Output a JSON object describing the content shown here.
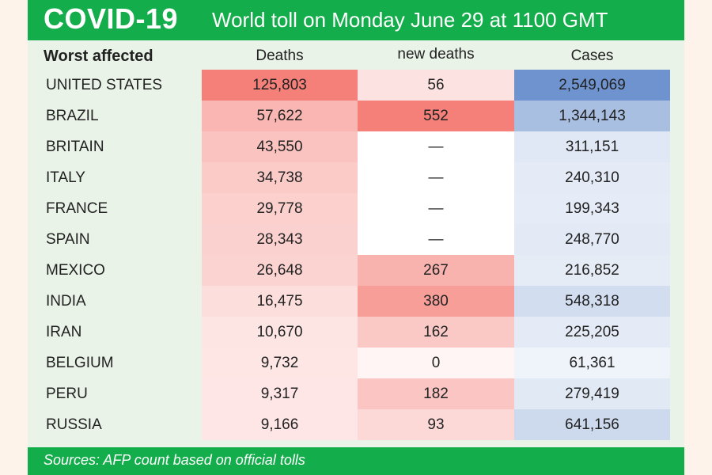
{
  "header": {
    "title": "COVID-19",
    "subtitle": "World toll on Monday June 29 at 1100 GMT"
  },
  "footer": {
    "source": "Sources: AFP count based on official tolls"
  },
  "colors": {
    "green": "#13ae4b",
    "red_max": "#f48079",
    "blue_max": "#6f93cf"
  },
  "chart_data": {
    "type": "table",
    "title": "COVID-19 World toll on Monday June 29 at 1100 GMT",
    "columns": [
      "Worst affected",
      "Deaths",
      "new deaths",
      "Cases"
    ],
    "rows": [
      {
        "country": "UNITED STATES",
        "deaths": "125,803",
        "new_deaths": "56",
        "cases": "2,549,069"
      },
      {
        "country": "BRAZIL",
        "deaths": "57,622",
        "new_deaths": "552",
        "cases": "1,344,143"
      },
      {
        "country": "BRITAIN",
        "deaths": "43,550",
        "new_deaths": "—",
        "cases": "311,151"
      },
      {
        "country": "ITALY",
        "deaths": "34,738",
        "new_deaths": "—",
        "cases": "240,310"
      },
      {
        "country": "FRANCE",
        "deaths": "29,778",
        "new_deaths": "—",
        "cases": "199,343"
      },
      {
        "country": "SPAIN",
        "deaths": "28,343",
        "new_deaths": "—",
        "cases": "248,770"
      },
      {
        "country": "MEXICO",
        "deaths": "26,648",
        "new_deaths": "267",
        "cases": "216,852"
      },
      {
        "country": "INDIA",
        "deaths": "16,475",
        "new_deaths": "380",
        "cases": "548,318"
      },
      {
        "country": "IRAN",
        "deaths": "10,670",
        "new_deaths": "162",
        "cases": "225,205"
      },
      {
        "country": "BELGIUM",
        "deaths": "9,732",
        "new_deaths": "0",
        "cases": "61,361"
      },
      {
        "country": "PERU",
        "deaths": "9,317",
        "new_deaths": "182",
        "cases": "279,419"
      },
      {
        "country": "RUSSIA",
        "deaths": "9,166",
        "new_deaths": "93",
        "cases": "641,156"
      }
    ]
  }
}
